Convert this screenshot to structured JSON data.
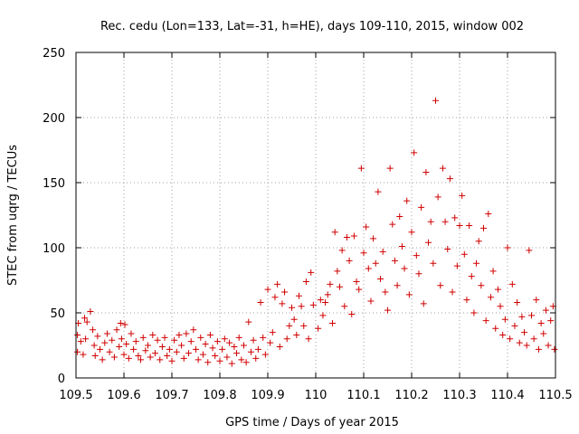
{
  "chart_data": {
    "type": "scatter",
    "title": "Rec. cedu (Lon=133, Lat=-31, h=HE), days 109-110, 2015, window 002",
    "xlabel": "GPS time / Days of year 2015",
    "ylabel": "STEC from uqrg / TECUs",
    "xlim": [
      109.5,
      110.5
    ],
    "ylim": [
      0,
      250
    ],
    "x_ticks": [
      109.5,
      109.6,
      109.7,
      109.8,
      109.9,
      110,
      110.1,
      110.2,
      110.3,
      110.4,
      110.5
    ],
    "x_tick_labels": [
      "109.5",
      "109.6",
      "109.7",
      "109.8",
      "109.9",
      "110",
      "110.1",
      "110.2",
      "110.3",
      "110.4",
      "110.5"
    ],
    "y_ticks": [
      0,
      50,
      100,
      150,
      200,
      250
    ],
    "y_tick_labels": [
      "0",
      "50",
      "100",
      "150",
      "200",
      "250"
    ],
    "grid": true,
    "marker": "+",
    "color": "#d00000",
    "series": [
      {
        "name": "STEC",
        "points": [
          [
            109.503,
            20
          ],
          [
            109.503,
            33
          ],
          [
            109.505,
            42
          ],
          [
            109.51,
            28
          ],
          [
            109.515,
            18
          ],
          [
            109.518,
            46
          ],
          [
            109.52,
            30
          ],
          [
            109.523,
            43
          ],
          [
            109.53,
            51
          ],
          [
            109.535,
            37
          ],
          [
            109.538,
            25
          ],
          [
            109.54,
            17
          ],
          [
            109.545,
            32
          ],
          [
            109.55,
            22
          ],
          [
            109.555,
            14
          ],
          [
            109.56,
            27
          ],
          [
            109.565,
            34
          ],
          [
            109.57,
            20
          ],
          [
            109.575,
            29
          ],
          [
            109.58,
            16
          ],
          [
            109.585,
            37
          ],
          [
            109.59,
            24
          ],
          [
            109.593,
            42
          ],
          [
            109.595,
            30
          ],
          [
            109.6,
            18
          ],
          [
            109.602,
            41
          ],
          [
            109.605,
            26
          ],
          [
            109.61,
            15
          ],
          [
            109.615,
            34
          ],
          [
            109.62,
            22
          ],
          [
            109.625,
            28
          ],
          [
            109.63,
            17
          ],
          [
            109.635,
            14
          ],
          [
            109.64,
            31
          ],
          [
            109.645,
            21
          ],
          [
            109.65,
            25
          ],
          [
            109.655,
            16
          ],
          [
            109.66,
            33
          ],
          [
            109.665,
            19
          ],
          [
            109.67,
            29
          ],
          [
            109.675,
            14
          ],
          [
            109.68,
            24
          ],
          [
            109.685,
            31
          ],
          [
            109.69,
            17
          ],
          [
            109.695,
            22
          ],
          [
            109.7,
            13
          ],
          [
            109.705,
            29
          ],
          [
            109.71,
            20
          ],
          [
            109.715,
            33
          ],
          [
            109.72,
            25
          ],
          [
            109.725,
            15
          ],
          [
            109.73,
            34
          ],
          [
            109.735,
            19
          ],
          [
            109.74,
            28
          ],
          [
            109.745,
            37
          ],
          [
            109.75,
            22
          ],
          [
            109.755,
            14
          ],
          [
            109.76,
            31
          ],
          [
            109.765,
            18
          ],
          [
            109.77,
            26
          ],
          [
            109.775,
            12
          ],
          [
            109.78,
            33
          ],
          [
            109.785,
            23
          ],
          [
            109.79,
            17
          ],
          [
            109.795,
            28
          ],
          [
            109.8,
            13
          ],
          [
            109.805,
            22
          ],
          [
            109.81,
            30
          ],
          [
            109.815,
            16
          ],
          [
            109.82,
            27
          ],
          [
            109.825,
            11
          ],
          [
            109.83,
            24
          ],
          [
            109.835,
            19
          ],
          [
            109.84,
            31
          ],
          [
            109.845,
            14
          ],
          [
            109.85,
            25
          ],
          [
            109.855,
            12
          ],
          [
            109.86,
            43
          ],
          [
            109.865,
            20
          ],
          [
            109.87,
            29
          ],
          [
            109.875,
            15
          ],
          [
            109.88,
            22
          ],
          [
            109.885,
            58
          ],
          [
            109.89,
            31
          ],
          [
            109.895,
            18
          ],
          [
            109.9,
            68
          ],
          [
            109.905,
            27
          ],
          [
            109.91,
            35
          ],
          [
            109.915,
            62
          ],
          [
            109.92,
            72
          ],
          [
            109.925,
            24
          ],
          [
            109.93,
            57
          ],
          [
            109.935,
            66
          ],
          [
            109.94,
            30
          ],
          [
            109.945,
            40
          ],
          [
            109.95,
            54
          ],
          [
            109.955,
            45
          ],
          [
            109.96,
            33
          ],
          [
            109.965,
            63
          ],
          [
            109.97,
            55
          ],
          [
            109.975,
            40
          ],
          [
            109.98,
            74
          ],
          [
            109.985,
            30
          ],
          [
            109.99,
            81
          ],
          [
            109.995,
            56
          ],
          [
            110.005,
            38
          ],
          [
            110.01,
            60
          ],
          [
            110.015,
            48
          ],
          [
            110.02,
            58
          ],
          [
            110.025,
            64
          ],
          [
            110.03,
            72
          ],
          [
            110.035,
            42
          ],
          [
            110.04,
            112
          ],
          [
            110.045,
            82
          ],
          [
            110.05,
            70
          ],
          [
            110.055,
            98
          ],
          [
            110.06,
            55
          ],
          [
            110.065,
            108
          ],
          [
            110.07,
            90
          ],
          [
            110.075,
            49
          ],
          [
            110.08,
            109
          ],
          [
            110.085,
            74
          ],
          [
            110.09,
            68
          ],
          [
            110.095,
            161
          ],
          [
            110.1,
            96
          ],
          [
            110.105,
            116
          ],
          [
            110.11,
            84
          ],
          [
            110.115,
            59
          ],
          [
            110.12,
            107
          ],
          [
            110.125,
            88
          ],
          [
            110.13,
            143
          ],
          [
            110.135,
            76
          ],
          [
            110.14,
            97
          ],
          [
            110.145,
            66
          ],
          [
            110.15,
            52
          ],
          [
            110.155,
            161
          ],
          [
            110.16,
            118
          ],
          [
            110.165,
            90
          ],
          [
            110.17,
            71
          ],
          [
            110.175,
            124
          ],
          [
            110.18,
            101
          ],
          [
            110.185,
            84
          ],
          [
            110.19,
            136
          ],
          [
            110.195,
            64
          ],
          [
            110.2,
            112
          ],
          [
            110.205,
            173
          ],
          [
            110.21,
            94
          ],
          [
            110.215,
            80
          ],
          [
            110.22,
            131
          ],
          [
            110.225,
            57
          ],
          [
            110.23,
            158
          ],
          [
            110.235,
            104
          ],
          [
            110.24,
            120
          ],
          [
            110.245,
            88
          ],
          [
            110.25,
            213
          ],
          [
            110.255,
            139
          ],
          [
            110.26,
            71
          ],
          [
            110.265,
            161
          ],
          [
            110.27,
            120
          ],
          [
            110.275,
            99
          ],
          [
            110.28,
            153
          ],
          [
            110.285,
            66
          ],
          [
            110.29,
            123
          ],
          [
            110.295,
            86
          ],
          [
            110.3,
            117
          ],
          [
            110.305,
            140
          ],
          [
            110.31,
            95
          ],
          [
            110.315,
            60
          ],
          [
            110.32,
            117
          ],
          [
            110.325,
            78
          ],
          [
            110.33,
            50
          ],
          [
            110.335,
            88
          ],
          [
            110.34,
            105
          ],
          [
            110.345,
            71
          ],
          [
            110.35,
            115
          ],
          [
            110.355,
            44
          ],
          [
            110.36,
            126
          ],
          [
            110.365,
            62
          ],
          [
            110.37,
            82
          ],
          [
            110.375,
            38
          ],
          [
            110.38,
            68
          ],
          [
            110.385,
            55
          ],
          [
            110.39,
            33
          ],
          [
            110.395,
            45
          ],
          [
            110.4,
            100
          ],
          [
            110.405,
            30
          ],
          [
            110.41,
            72
          ],
          [
            110.415,
            40
          ],
          [
            110.42,
            58
          ],
          [
            110.425,
            27
          ],
          [
            110.43,
            47
          ],
          [
            110.435,
            35
          ],
          [
            110.44,
            25
          ],
          [
            110.445,
            98
          ],
          [
            110.45,
            48
          ],
          [
            110.455,
            30
          ],
          [
            110.46,
            60
          ],
          [
            110.465,
            22
          ],
          [
            110.47,
            42
          ],
          [
            110.475,
            34
          ],
          [
            110.48,
            52
          ],
          [
            110.485,
            25
          ],
          [
            110.49,
            44
          ],
          [
            110.495,
            55
          ],
          [
            110.498,
            22
          ]
        ]
      }
    ]
  }
}
